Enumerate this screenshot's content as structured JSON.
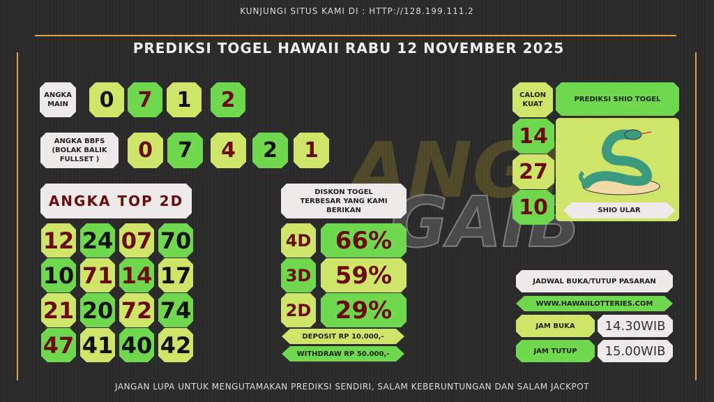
{
  "header": {
    "site_text": "KUNJUNGI SITUS KAMI DI : HTTP://128.199.111.2",
    "title": "PREDIKSI TOGEL HAWAII RABU 12 NOVEMBER 2025"
  },
  "colors": {
    "light_green": "#cfe56a",
    "green": "#6fd84f",
    "dark_red": "#6a0c0c",
    "frame": "#e0a24a",
    "background": "#2b2b2b"
  },
  "watermark": [
    "ANGKA",
    "GAIB"
  ],
  "angka_main": {
    "label": "ANGKA MAIN",
    "digits": [
      {
        "v": "0",
        "bg": "L",
        "c": "blk"
      },
      {
        "v": "7",
        "bg": "G",
        "c": "red"
      },
      {
        "v": "1",
        "bg": "L",
        "c": "blk"
      },
      {
        "v": "2",
        "bg": "G",
        "c": "red"
      }
    ]
  },
  "bbfs": {
    "label": "ANGKA BBFS (BOLAK BALIK FULLSET )",
    "digits": [
      {
        "v": "0",
        "bg": "L",
        "c": "red"
      },
      {
        "v": "7",
        "bg": "G",
        "c": "blk"
      },
      {
        "v": "4",
        "bg": "L",
        "c": "red"
      },
      {
        "v": "2",
        "bg": "G",
        "c": "blk"
      },
      {
        "v": "1",
        "bg": "L",
        "c": "red"
      }
    ]
  },
  "top2d": {
    "label": "ANGKA TOP 2D",
    "rows": [
      [
        {
          "v": "12",
          "bg": "L",
          "c": "red"
        },
        {
          "v": "24",
          "bg": "G",
          "c": "blk"
        },
        {
          "v": "07",
          "bg": "L",
          "c": "red"
        },
        {
          "v": "70",
          "bg": "G",
          "c": "blk"
        }
      ],
      [
        {
          "v": "10",
          "bg": "G",
          "c": "blk"
        },
        {
          "v": "71",
          "bg": "L",
          "c": "red"
        },
        {
          "v": "14",
          "bg": "G",
          "c": "red"
        },
        {
          "v": "17",
          "bg": "L",
          "c": "blk"
        }
      ],
      [
        {
          "v": "21",
          "bg": "L",
          "c": "red"
        },
        {
          "v": "20",
          "bg": "G",
          "c": "blk"
        },
        {
          "v": "72",
          "bg": "L",
          "c": "red"
        },
        {
          "v": "74",
          "bg": "G",
          "c": "blk"
        }
      ],
      [
        {
          "v": "47",
          "bg": "G",
          "c": "red"
        },
        {
          "v": "41",
          "bg": "L",
          "c": "blk"
        },
        {
          "v": "40",
          "bg": "G",
          "c": "blk"
        },
        {
          "v": "42",
          "bg": "L",
          "c": "blk"
        }
      ]
    ]
  },
  "diskon": {
    "label": "DISKON TOGEL TERBESAR YANG KAMI BERIKAN",
    "rows": [
      {
        "type": "4D",
        "value": "66%"
      },
      {
        "type": "3D",
        "value": "59%"
      },
      {
        "type": "2D",
        "value": "29%"
      }
    ],
    "deposit": "DEPOSIT RP 10.000,-",
    "withdraw": "WITHDRAW RP 50.000,-"
  },
  "calon": {
    "label": "CALON KUAT",
    "numbers": [
      "14",
      "27",
      "10"
    ]
  },
  "shio": {
    "header": "PREDIKSI SHIO TOGEL",
    "name": "SHIO ULAR",
    "icon": "snake-illustration"
  },
  "jadwal": {
    "label": "JADWAL BUKA/TUTUP PASARAN",
    "site": "WWW.HAWAIILOTTERIES.COM",
    "buka_label": "JAM BUKA",
    "buka": "14.30WIB",
    "tutup_label": "JAM TUTUP",
    "tutup": "15.00WIB"
  },
  "footer": {
    "text": "JANGAN LUPA UNTUK MENGUTAMAKAN PREDIKSI SENDIRI, SALAM KEBERUNTUNGAN DAN SALAM JACKPOT"
  }
}
